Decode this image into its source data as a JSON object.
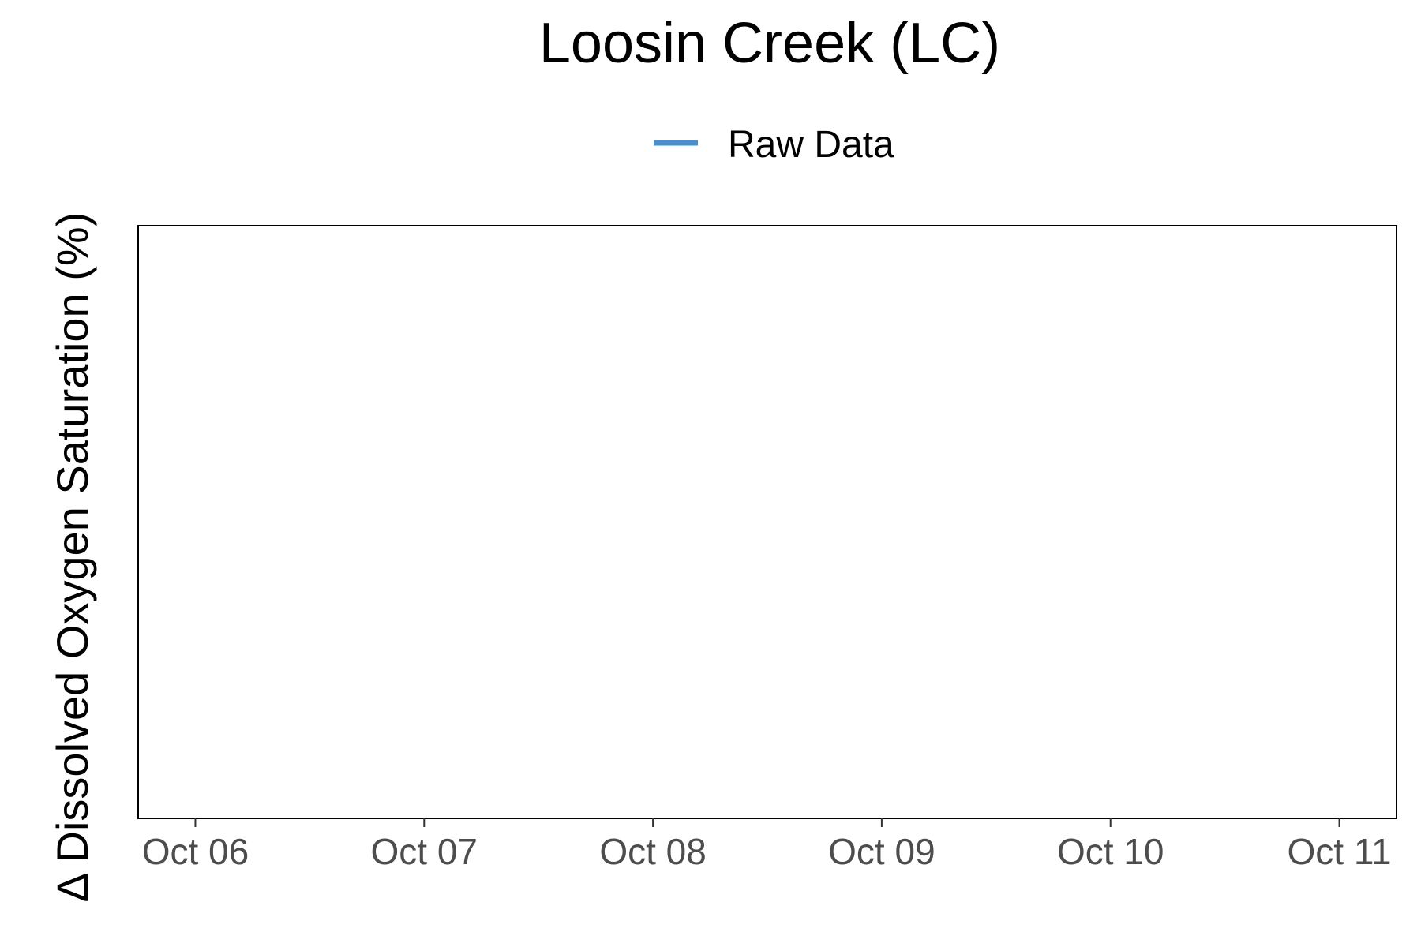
{
  "chart_data": {
    "type": "line",
    "title": "Loosin Creek (LC)",
    "xlabel": "",
    "ylabel": "Δ Dissolved Oxygen Saturation (%)",
    "x_tick_labels": [
      "Oct 06",
      "Oct 07",
      "Oct 08",
      "Oct 09",
      "Oct 10",
      "Oct 11"
    ],
    "x_ticks": [
      "2000-10-06",
      "2000-10-07",
      "2000-10-08",
      "2000-10-09",
      "2000-10-10",
      "2000-10-11"
    ],
    "xlim": [
      "2000-10-05T18:00",
      "2000-10-11T06:00"
    ],
    "y_tick_labels": [],
    "grid": false,
    "legend": {
      "placement": "top-center"
    },
    "series": [
      {
        "name": "Raw Data",
        "color": "#4a8fcc",
        "points": []
      }
    ]
  }
}
